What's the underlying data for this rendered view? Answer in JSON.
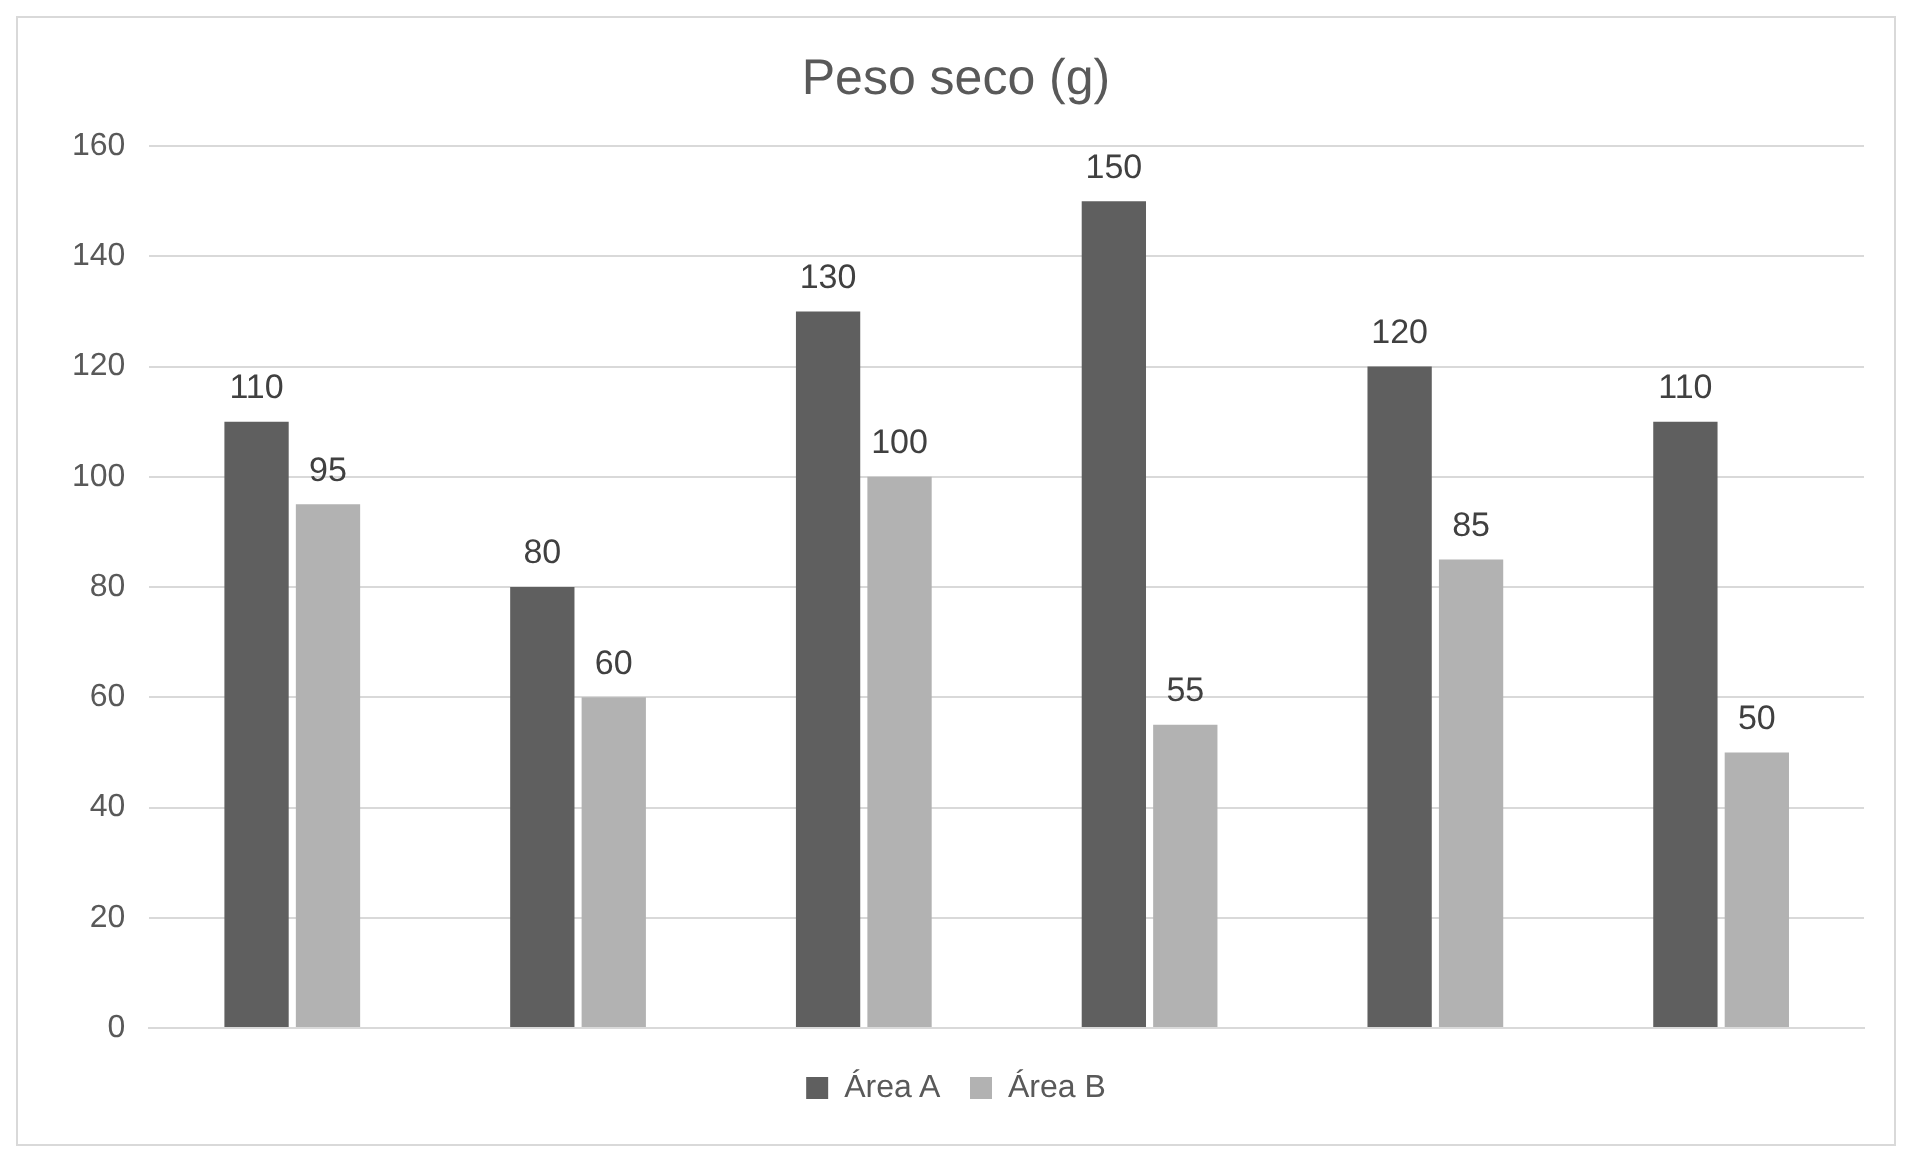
{
  "chart_data": {
    "type": "bar",
    "title": "Peso seco (g)",
    "categories": [
      null,
      null,
      null,
      null,
      null,
      null
    ],
    "series": [
      {
        "name": "Área A",
        "color": "#5f5f5f",
        "values": [
          110,
          80,
          130,
          150,
          120,
          110
        ]
      },
      {
        "name": "Área B",
        "color": "#b2b2b2",
        "values": [
          95,
          60,
          100,
          55,
          85,
          50
        ]
      }
    ],
    "ylim": [
      0,
      160
    ],
    "yticks": [
      0,
      20,
      40,
      60,
      80,
      100,
      120,
      140,
      160
    ],
    "grid": "y",
    "legend": "bottom",
    "data_labels": true
  }
}
